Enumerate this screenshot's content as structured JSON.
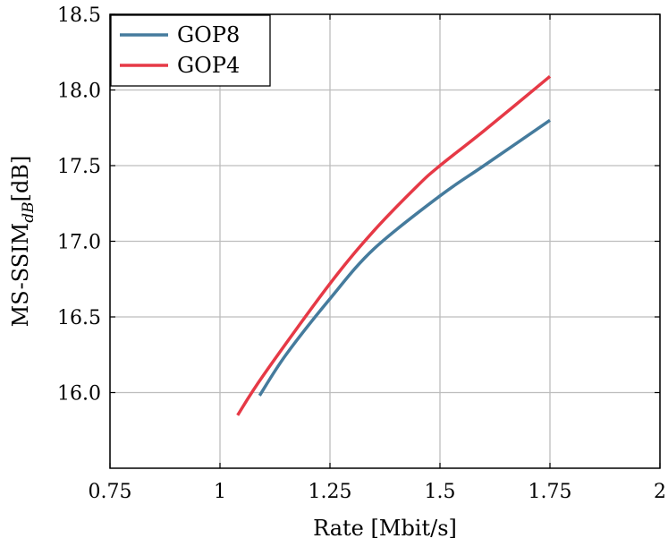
{
  "chart_data": {
    "type": "line",
    "xlabel": "Rate [Mbit/s]",
    "ylabel_main": "MS-SSIM",
    "ylabel_sub": "dB",
    "ylabel_unit": "[dB]",
    "xlim": [
      0.75,
      2
    ],
    "ylim": [
      15.5,
      18.5
    ],
    "xticks": [
      0.75,
      1,
      1.25,
      1.5,
      1.75,
      2
    ],
    "xtick_labels": [
      "0.75",
      "1",
      "1.25",
      "1.5",
      "1.75",
      "2"
    ],
    "yticks": [
      16.0,
      16.5,
      17.0,
      17.5,
      18.0,
      18.5
    ],
    "ytick_labels": [
      "16.0",
      "16.5",
      "17.0",
      "17.5",
      "18.0",
      "18.5"
    ],
    "grid": true,
    "legend_position": "top-left",
    "series": [
      {
        "name": "GOP8",
        "color": "#457b9d",
        "x": [
          1.09,
          1.15,
          1.25,
          1.35,
          1.5,
          1.6,
          1.75
        ],
        "y": [
          15.98,
          16.25,
          16.62,
          16.95,
          17.3,
          17.5,
          17.8
        ]
      },
      {
        "name": "GOP4",
        "color": "#e63946",
        "x": [
          1.04,
          1.1,
          1.25,
          1.35,
          1.45,
          1.5,
          1.6,
          1.75
        ],
        "y": [
          15.85,
          16.12,
          16.72,
          17.07,
          17.37,
          17.5,
          17.73,
          18.09
        ]
      }
    ]
  }
}
